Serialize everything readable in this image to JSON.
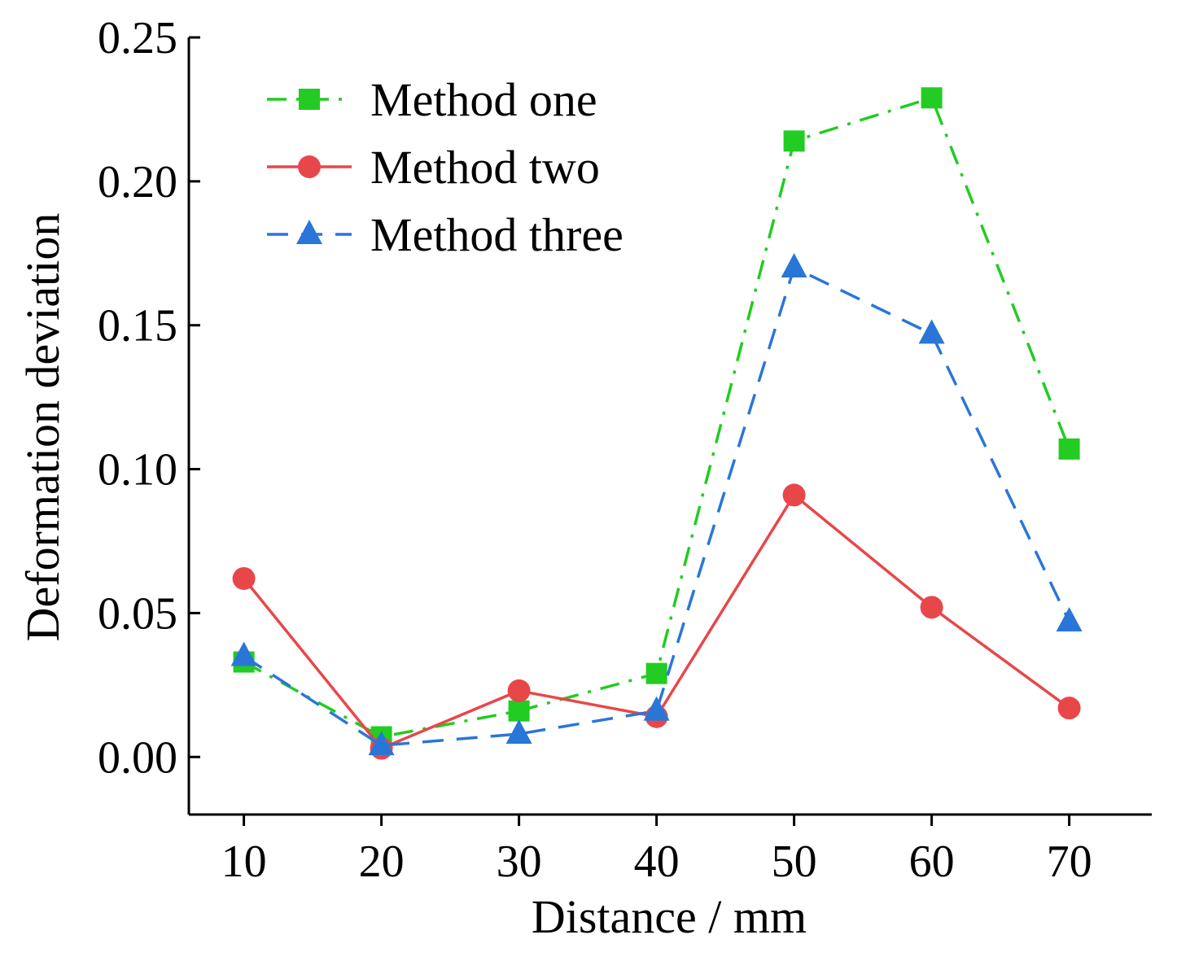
{
  "chart_data": {
    "type": "line",
    "title": "",
    "xlabel": "Distance / mm",
    "ylabel": "Deformation deviation",
    "x": [
      10,
      20,
      30,
      40,
      50,
      60,
      70
    ],
    "xlim": [
      6,
      76
    ],
    "ylim": [
      -0.02,
      0.25
    ],
    "xticks": [
      10,
      20,
      30,
      40,
      50,
      60,
      70
    ],
    "xtick_labels": [
      "10",
      "20",
      "30",
      "40",
      "50",
      "60",
      "70"
    ],
    "yticks": [
      0.0,
      0.05,
      0.1,
      0.15,
      0.2,
      0.25
    ],
    "ytick_labels": [
      "0.00",
      "0.05",
      "0.10",
      "0.15",
      "0.20",
      "0.25"
    ],
    "grid": false,
    "legend_position": "top-left",
    "series": [
      {
        "name": "Method one",
        "values": [
          0.033,
          0.007,
          0.016,
          0.029,
          0.214,
          0.229,
          0.107
        ],
        "color": "#22cc22",
        "marker": "square",
        "line_style": "dash-dot"
      },
      {
        "name": "Method two",
        "values": [
          0.062,
          0.003,
          0.023,
          0.014,
          0.091,
          0.052,
          0.017
        ],
        "color": "#e8474a",
        "marker": "circle",
        "line_style": "solid"
      },
      {
        "name": "Method three",
        "values": [
          0.035,
          0.004,
          0.008,
          0.016,
          0.17,
          0.147,
          0.047
        ],
        "color": "#2a76d8",
        "marker": "triangle",
        "line_style": "dashed"
      }
    ]
  }
}
